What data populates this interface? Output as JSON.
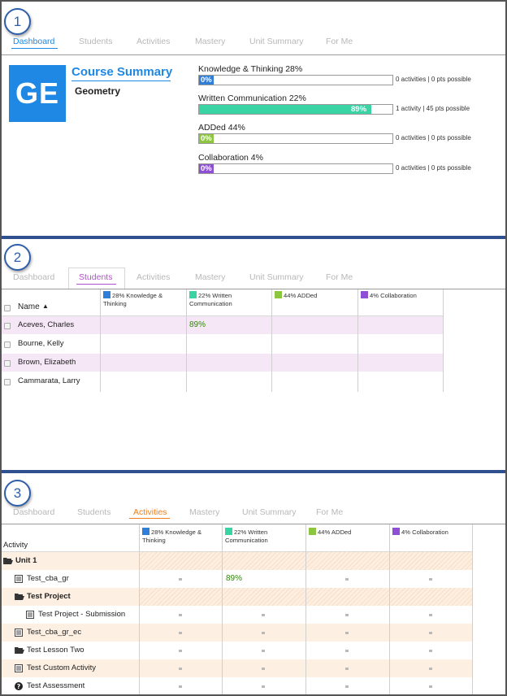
{
  "colors": {
    "knowledge": "#2f7ed8",
    "written": "#39d3a4",
    "added": "#8cc63f",
    "collaboration": "#8e4fd4",
    "dashboard_tab": "#1e88e5",
    "students_tab": "#b44fcf",
    "activities_tab": "#f07f1a",
    "row_purple": "#f6e7f6",
    "row_peach": "#fdf0e3",
    "score_green": "#2b8a00"
  },
  "steps": [
    "1",
    "2",
    "3"
  ],
  "tabs": [
    "Dashboard",
    "Students",
    "Activities",
    "Mastery",
    "Unit Summary",
    "For Me"
  ],
  "panel1": {
    "logo": "GE",
    "title": "Course Summary",
    "course_name": "Geometry",
    "bars": [
      {
        "label": "Knowledge & Thinking 28%",
        "pct_text": "0%",
        "fill": 0,
        "info": "0 activities | 0 pts possible",
        "color_key": "knowledge"
      },
      {
        "label": "Written Communication 22%",
        "pct_text": "89%",
        "fill": 0.89,
        "info": "1 activity | 45 pts possible",
        "color_key": "written"
      },
      {
        "label": "ADDed 44%",
        "pct_text": "0%",
        "fill": 0,
        "info": "0 activities | 0 pts possible",
        "color_key": "added"
      },
      {
        "label": "Collaboration 4%",
        "pct_text": "0%",
        "fill": 0,
        "info": "0 activities | 0 pts possible",
        "color_key": "collaboration"
      }
    ]
  },
  "columns": [
    {
      "line1": "28% Knowledge &",
      "line2": "Thinking",
      "color_key": "knowledge"
    },
    {
      "line1": "22% Written",
      "line2": "Communication",
      "color_key": "written"
    },
    {
      "line1": "44% ADDed",
      "line2": "",
      "color_key": "added"
    },
    {
      "line1": "4% Collaboration",
      "line2": "",
      "color_key": "collaboration"
    }
  ],
  "panel2": {
    "name_header": "Name",
    "sort_icon": "sort-ascending-icon",
    "students": [
      {
        "name": "Aceves, Charles",
        "score": "89%"
      },
      {
        "name": "Bourne, Kelly",
        "score": ""
      },
      {
        "name": "Brown, Elizabeth",
        "score": ""
      },
      {
        "name": "Cammarata, Larry",
        "score": ""
      }
    ]
  },
  "panel3": {
    "activity_header": "Activity",
    "rows": [
      {
        "name": "Unit 1",
        "type": "folder",
        "bold": true,
        "group": true
      },
      {
        "name": "Test_cba_gr",
        "type": "doc",
        "bold": false,
        "group": false,
        "score": "89%"
      },
      {
        "name": "Test Project",
        "type": "folder",
        "bold": true,
        "group": true
      },
      {
        "name": "Test Project - Submission",
        "type": "doc",
        "bold": false,
        "group": false,
        "score": ""
      },
      {
        "name": "Test_cba_gr_ec",
        "type": "doc",
        "bold": false,
        "group": false,
        "score": ""
      },
      {
        "name": "Test Lesson Two",
        "type": "folder",
        "bold": false,
        "group": false,
        "score": ""
      },
      {
        "name": "Test Custom Activity",
        "type": "doc",
        "bold": false,
        "group": false,
        "score": ""
      },
      {
        "name": "Test Assessment",
        "type": "question",
        "bold": false,
        "group": false,
        "score": ""
      }
    ]
  }
}
